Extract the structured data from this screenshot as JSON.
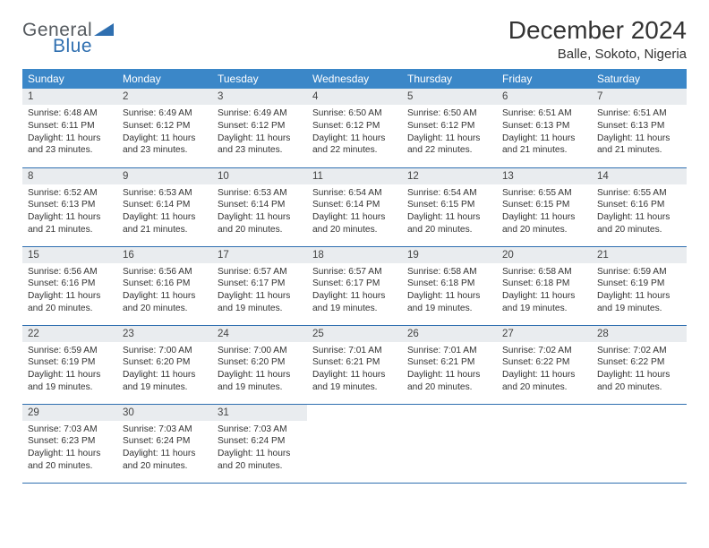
{
  "logo": {
    "textA": "General",
    "textB": "Blue",
    "triColor": "#2f6fb0"
  },
  "title": "December 2024",
  "location": "Balle, Sokoto, Nigeria",
  "headerBg": "#3b87c8",
  "dayBg": "#e9ecef",
  "borderColor": "#2f6fb0",
  "weekdays": [
    "Sunday",
    "Monday",
    "Tuesday",
    "Wednesday",
    "Thursday",
    "Friday",
    "Saturday"
  ],
  "weeks": [
    [
      {
        "n": "1",
        "sr": "6:48 AM",
        "ss": "6:11 PM",
        "dl": "11 hours and 23 minutes."
      },
      {
        "n": "2",
        "sr": "6:49 AM",
        "ss": "6:12 PM",
        "dl": "11 hours and 23 minutes."
      },
      {
        "n": "3",
        "sr": "6:49 AM",
        "ss": "6:12 PM",
        "dl": "11 hours and 23 minutes."
      },
      {
        "n": "4",
        "sr": "6:50 AM",
        "ss": "6:12 PM",
        "dl": "11 hours and 22 minutes."
      },
      {
        "n": "5",
        "sr": "6:50 AM",
        "ss": "6:12 PM",
        "dl": "11 hours and 22 minutes."
      },
      {
        "n": "6",
        "sr": "6:51 AM",
        "ss": "6:13 PM",
        "dl": "11 hours and 21 minutes."
      },
      {
        "n": "7",
        "sr": "6:51 AM",
        "ss": "6:13 PM",
        "dl": "11 hours and 21 minutes."
      }
    ],
    [
      {
        "n": "8",
        "sr": "6:52 AM",
        "ss": "6:13 PM",
        "dl": "11 hours and 21 minutes."
      },
      {
        "n": "9",
        "sr": "6:53 AM",
        "ss": "6:14 PM",
        "dl": "11 hours and 21 minutes."
      },
      {
        "n": "10",
        "sr": "6:53 AM",
        "ss": "6:14 PM",
        "dl": "11 hours and 20 minutes."
      },
      {
        "n": "11",
        "sr": "6:54 AM",
        "ss": "6:14 PM",
        "dl": "11 hours and 20 minutes."
      },
      {
        "n": "12",
        "sr": "6:54 AM",
        "ss": "6:15 PM",
        "dl": "11 hours and 20 minutes."
      },
      {
        "n": "13",
        "sr": "6:55 AM",
        "ss": "6:15 PM",
        "dl": "11 hours and 20 minutes."
      },
      {
        "n": "14",
        "sr": "6:55 AM",
        "ss": "6:16 PM",
        "dl": "11 hours and 20 minutes."
      }
    ],
    [
      {
        "n": "15",
        "sr": "6:56 AM",
        "ss": "6:16 PM",
        "dl": "11 hours and 20 minutes."
      },
      {
        "n": "16",
        "sr": "6:56 AM",
        "ss": "6:16 PM",
        "dl": "11 hours and 20 minutes."
      },
      {
        "n": "17",
        "sr": "6:57 AM",
        "ss": "6:17 PM",
        "dl": "11 hours and 19 minutes."
      },
      {
        "n": "18",
        "sr": "6:57 AM",
        "ss": "6:17 PM",
        "dl": "11 hours and 19 minutes."
      },
      {
        "n": "19",
        "sr": "6:58 AM",
        "ss": "6:18 PM",
        "dl": "11 hours and 19 minutes."
      },
      {
        "n": "20",
        "sr": "6:58 AM",
        "ss": "6:18 PM",
        "dl": "11 hours and 19 minutes."
      },
      {
        "n": "21",
        "sr": "6:59 AM",
        "ss": "6:19 PM",
        "dl": "11 hours and 19 minutes."
      }
    ],
    [
      {
        "n": "22",
        "sr": "6:59 AM",
        "ss": "6:19 PM",
        "dl": "11 hours and 19 minutes."
      },
      {
        "n": "23",
        "sr": "7:00 AM",
        "ss": "6:20 PM",
        "dl": "11 hours and 19 minutes."
      },
      {
        "n": "24",
        "sr": "7:00 AM",
        "ss": "6:20 PM",
        "dl": "11 hours and 19 minutes."
      },
      {
        "n": "25",
        "sr": "7:01 AM",
        "ss": "6:21 PM",
        "dl": "11 hours and 19 minutes."
      },
      {
        "n": "26",
        "sr": "7:01 AM",
        "ss": "6:21 PM",
        "dl": "11 hours and 20 minutes."
      },
      {
        "n": "27",
        "sr": "7:02 AM",
        "ss": "6:22 PM",
        "dl": "11 hours and 20 minutes."
      },
      {
        "n": "28",
        "sr": "7:02 AM",
        "ss": "6:22 PM",
        "dl": "11 hours and 20 minutes."
      }
    ],
    [
      {
        "n": "29",
        "sr": "7:03 AM",
        "ss": "6:23 PM",
        "dl": "11 hours and 20 minutes."
      },
      {
        "n": "30",
        "sr": "7:03 AM",
        "ss": "6:24 PM",
        "dl": "11 hours and 20 minutes."
      },
      {
        "n": "31",
        "sr": "7:03 AM",
        "ss": "6:24 PM",
        "dl": "11 hours and 20 minutes."
      },
      null,
      null,
      null,
      null
    ]
  ],
  "labels": {
    "sunrise": "Sunrise:",
    "sunset": "Sunset:",
    "daylight": "Daylight:"
  }
}
